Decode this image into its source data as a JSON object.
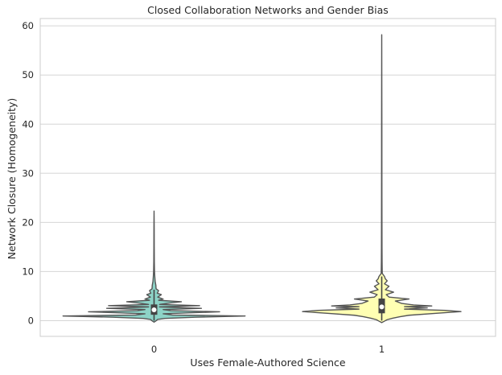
{
  "chart_data": {
    "type": "violin",
    "title": "Closed Collaboration Networks and Gender Bias",
    "xlabel": "Uses Female-Authored Science",
    "ylabel": "Network Closure (Homogeneity)",
    "categories": [
      "0",
      "1"
    ],
    "ylim": [
      -3.2,
      61.5
    ],
    "yticks": [
      0,
      10,
      20,
      30,
      40,
      50,
      60
    ],
    "grid": true,
    "colors": {
      "0": "#8dd3c7",
      "1": "#ffffb3",
      "outline": "#555555",
      "grid": "#d6d6d6",
      "frame": "#cccccc"
    },
    "violins": [
      {
        "category": "0",
        "min": -0.2,
        "max": 22.3,
        "q1": 1.2,
        "median": 2.2,
        "q3": 3.3,
        "whisker_low": 0.0,
        "whisker_high": 6.3,
        "profile": [
          [
            -0.3,
            0.0
          ],
          [
            -0.05,
            0.02
          ],
          [
            0.25,
            0.04
          ],
          [
            0.45,
            0.12
          ],
          [
            0.7,
            0.45
          ],
          [
            0.95,
            1.0
          ],
          [
            1.15,
            0.2
          ],
          [
            1.4,
            0.1
          ],
          [
            1.6,
            0.4
          ],
          [
            1.8,
            0.72
          ],
          [
            2.05,
            0.18
          ],
          [
            2.25,
            0.1
          ],
          [
            2.5,
            0.52
          ],
          [
            2.8,
            0.06
          ],
          [
            3.05,
            0.5
          ],
          [
            3.3,
            0.06
          ],
          [
            3.6,
            0.18
          ],
          [
            3.85,
            0.3
          ],
          [
            4.15,
            0.05
          ],
          [
            4.4,
            0.1
          ],
          [
            4.8,
            0.04
          ],
          [
            5.3,
            0.08
          ],
          [
            5.6,
            0.035
          ],
          [
            6.1,
            0.05
          ],
          [
            6.5,
            0.022
          ],
          [
            7.2,
            0.02
          ],
          [
            8.0,
            0.012
          ],
          [
            9.0,
            0.008
          ],
          [
            10.0,
            0.005
          ],
          [
            12.0,
            0.003
          ],
          [
            15.0,
            0.002
          ],
          [
            19.0,
            0.0015
          ],
          [
            22.3,
            0.0
          ]
        ]
      },
      {
        "category": "1",
        "min": -0.3,
        "max": 58.2,
        "q1": 1.5,
        "median": 2.8,
        "q3": 4.5,
        "whisker_low": 0.0,
        "whisker_high": 9.0,
        "profile": [
          [
            -0.4,
            0.0
          ],
          [
            -0.1,
            0.03
          ],
          [
            0.2,
            0.06
          ],
          [
            0.5,
            0.12
          ],
          [
            0.8,
            0.2
          ],
          [
            1.1,
            0.3
          ],
          [
            1.5,
            0.6
          ],
          [
            1.85,
            0.87
          ],
          [
            2.1,
            0.7
          ],
          [
            2.35,
            0.25
          ],
          [
            2.6,
            0.5
          ],
          [
            2.85,
            0.25
          ],
          [
            3.0,
            0.55
          ],
          [
            3.2,
            0.35
          ],
          [
            3.5,
            0.22
          ],
          [
            4.0,
            0.15
          ],
          [
            4.4,
            0.3
          ],
          [
            4.8,
            0.08
          ],
          [
            5.3,
            0.05
          ],
          [
            5.8,
            0.13
          ],
          [
            6.3,
            0.04
          ],
          [
            7.0,
            0.08
          ],
          [
            7.5,
            0.03
          ],
          [
            8.1,
            0.06
          ],
          [
            8.5,
            0.04
          ],
          [
            9.0,
            0.03
          ],
          [
            9.6,
            0.006
          ],
          [
            10.5,
            0.005
          ],
          [
            12.0,
            0.004
          ],
          [
            15.0,
            0.003
          ],
          [
            25.0,
            0.002
          ],
          [
            40.0,
            0.0015
          ],
          [
            58.2,
            0.0
          ]
        ]
      }
    ]
  }
}
